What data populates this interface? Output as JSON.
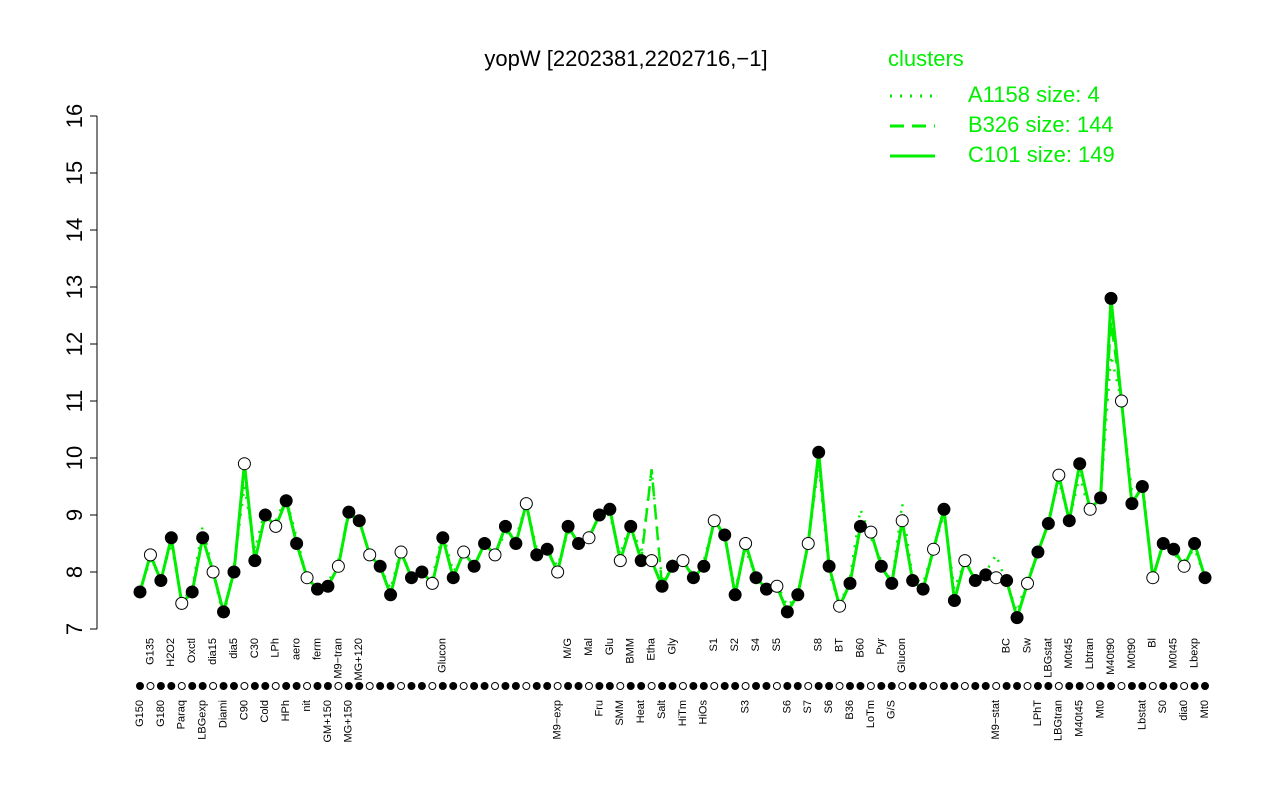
{
  "chart_data": {
    "type": "line",
    "title": "yopW [2202381,2202716,−1]",
    "legend_title": "clusters",
    "categories": [
      "G150",
      "G135",
      "G180",
      "H2O2",
      "Paraq",
      "Oxctl",
      "LBGexp",
      "dia15",
      "Diami",
      "dia5",
      "C90",
      "C30",
      "Cold",
      "LPh",
      "HPh",
      "aero",
      "nit",
      "ferm",
      "GM+150",
      "M9−tran",
      "MG+150",
      "MG+120",
      null,
      null,
      null,
      null,
      null,
      null,
      null,
      "Glucon",
      null,
      null,
      null,
      null,
      null,
      null,
      null,
      null,
      null,
      null,
      "M9−exp",
      "M/G",
      null,
      "Mal",
      "Fru",
      "Glu",
      "SMM",
      "BMM",
      "Heat",
      "Etha",
      "Salt",
      "Gly",
      "HiTm",
      null,
      "HiOs",
      "S1",
      null,
      "S2",
      "S3",
      "S4",
      null,
      "S5",
      "S6",
      null,
      "S7",
      "S8",
      "S6",
      "BT",
      "B36",
      "B60",
      "LoTm",
      "Pyr",
      "G/S",
      "Glucon",
      null,
      null,
      null,
      null,
      null,
      null,
      null,
      null,
      "M9−stat",
      "BC",
      null,
      "Sw",
      "LPhT",
      "LBGstat",
      "LBGtran",
      "M0t45",
      "M40t45",
      "Lbtran",
      "Mt0",
      "M40t90",
      null,
      "M0t90",
      "Lbstat",
      "Bl",
      "S0",
      "M0t45",
      "dia0",
      "Lbexp",
      "Mt0"
    ],
    "series": [
      {
        "name": "A1158 size: 4",
        "color": "#00ee00",
        "style": "dotted",
        "values": [
          7.7,
          8.2,
          7.9,
          8.5,
          7.5,
          7.7,
          8.8,
          8.0,
          7.2,
          8.1,
          9.5,
          8.4,
          9.1,
          8.9,
          9.3,
          8.6,
          7.9,
          7.7,
          7.8,
          8.2,
          9.0,
          8.9,
          8.3,
          8.1,
          7.7,
          8.4,
          7.9,
          8.0,
          7.9,
          8.7,
          8.0,
          8.3,
          8.1,
          8.5,
          8.3,
          8.7,
          8.6,
          9.2,
          8.4,
          8.4,
          8.1,
          8.7,
          8.5,
          8.6,
          9.0,
          9.0,
          8.3,
          8.9,
          8.3,
          9.8,
          7.8,
          8.2,
          8.3,
          7.9,
          8.2,
          8.9,
          8.6,
          7.7,
          8.4,
          7.9,
          7.7,
          7.8,
          7.4,
          7.6,
          8.5,
          9.9,
          8.0,
          7.4,
          7.9,
          9.1,
          8.6,
          8.2,
          7.8,
          9.2,
          7.9,
          7.8,
          8.4,
          9.0,
          7.7,
          8.2,
          7.9,
          8.0,
          8.3,
          7.8,
          7.3,
          7.9,
          8.3,
          8.9,
          9.6,
          8.9,
          9.7,
          9.0,
          9.3,
          11.8,
          11.0,
          9.4,
          9.6,
          7.9,
          8.5,
          8.3,
          8.2,
          8.4,
          7.9
        ]
      },
      {
        "name": "B326 size: 144",
        "color": "#00ee00",
        "style": "dashed",
        "values": [
          7.65,
          8.3,
          7.85,
          8.6,
          7.45,
          7.65,
          8.6,
          8.0,
          7.3,
          8.0,
          9.8,
          8.2,
          9.0,
          8.8,
          9.3,
          8.5,
          7.9,
          7.7,
          7.75,
          8.1,
          9.1,
          8.9,
          8.3,
          8.1,
          7.6,
          8.35,
          7.9,
          8.0,
          7.8,
          8.6,
          7.9,
          8.35,
          8.1,
          8.5,
          8.3,
          8.8,
          8.5,
          9.2,
          8.3,
          8.4,
          8.0,
          8.8,
          8.5,
          8.6,
          9.0,
          9.1,
          8.2,
          8.8,
          8.2,
          9.8,
          7.75,
          8.1,
          8.2,
          7.9,
          8.1,
          8.9,
          8.65,
          7.6,
          8.5,
          7.9,
          7.7,
          7.75,
          7.3,
          7.6,
          8.5,
          10.0,
          8.1,
          7.4,
          7.8,
          8.8,
          8.7,
          8.1,
          7.8,
          8.9,
          7.85,
          7.7,
          8.4,
          9.1,
          7.5,
          8.2,
          7.85,
          7.95,
          7.9,
          7.85,
          7.2,
          7.8,
          8.35,
          8.85,
          9.7,
          8.9,
          9.9,
          9.1,
          9.3,
          12.4,
          11.0,
          9.2,
          9.5,
          7.9,
          8.5,
          8.4,
          8.1,
          8.5,
          7.9
        ]
      },
      {
        "name": "C101 size: 149",
        "color": "#00ee00",
        "style": "solid",
        "values": [
          7.65,
          8.3,
          7.85,
          8.6,
          7.45,
          7.65,
          8.6,
          8.0,
          7.3,
          8.0,
          9.9,
          8.2,
          9.0,
          8.8,
          9.25,
          8.5,
          7.9,
          7.7,
          7.75,
          8.1,
          9.05,
          8.9,
          8.3,
          8.1,
          7.6,
          8.35,
          7.9,
          8.0,
          7.8,
          8.6,
          7.9,
          8.35,
          8.1,
          8.5,
          8.3,
          8.8,
          8.5,
          9.2,
          8.3,
          8.4,
          8.0,
          8.8,
          8.5,
          8.6,
          9.0,
          9.1,
          8.2,
          8.8,
          8.2,
          8.2,
          7.75,
          8.1,
          8.2,
          7.9,
          8.1,
          8.9,
          8.65,
          7.6,
          8.5,
          7.9,
          7.7,
          7.75,
          7.3,
          7.6,
          8.5,
          10.1,
          8.1,
          7.4,
          7.8,
          8.8,
          8.7,
          8.1,
          7.8,
          8.9,
          7.85,
          7.7,
          8.4,
          9.1,
          7.5,
          8.2,
          7.85,
          7.95,
          7.9,
          7.85,
          7.2,
          7.8,
          8.35,
          8.85,
          9.7,
          8.9,
          9.9,
          9.1,
          9.3,
          12.8,
          11.0,
          9.2,
          9.5,
          7.9,
          8.5,
          8.4,
          8.1,
          8.5,
          7.9
        ]
      }
    ],
    "ylim": [
      7,
      16
    ],
    "yticks": [
      7,
      8,
      9,
      10,
      11,
      12,
      13,
      14,
      15,
      16
    ]
  }
}
